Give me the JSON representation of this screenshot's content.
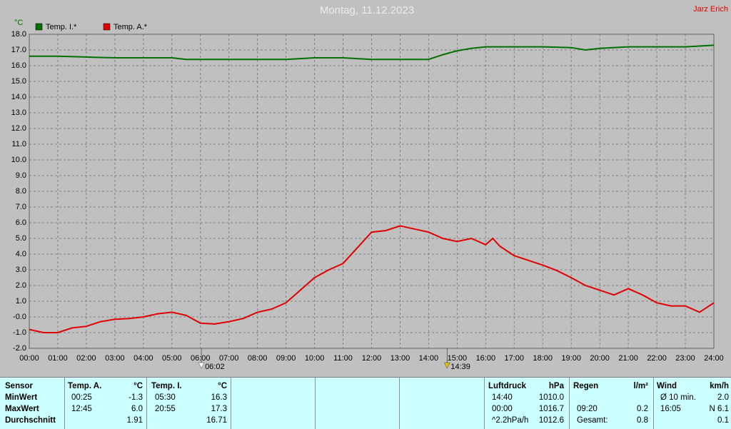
{
  "chart_data": {
    "type": "line",
    "title": "Montag, 11.12.2023",
    "author": "Jarz Erich",
    "y_label": "°C",
    "grid": true,
    "xlim": [
      0,
      24
    ],
    "ylim": [
      -2,
      18
    ],
    "xticks": [
      {
        "value": 0,
        "label": "00:00"
      },
      {
        "value": 1,
        "label": "01:00"
      },
      {
        "value": 2,
        "label": "02:00"
      },
      {
        "value": 3,
        "label": "03:00"
      },
      {
        "value": 4,
        "label": "04:00"
      },
      {
        "value": 5,
        "label": "05:00"
      },
      {
        "value": 6,
        "label": "06:00"
      },
      {
        "value": 7,
        "label": "07:00"
      },
      {
        "value": 8,
        "label": "08:00"
      },
      {
        "value": 9,
        "label": "09:00"
      },
      {
        "value": 10,
        "label": "10:00"
      },
      {
        "value": 11,
        "label": "11:00"
      },
      {
        "value": 12,
        "label": "12:00"
      },
      {
        "value": 13,
        "label": "13:00"
      },
      {
        "value": 14,
        "label": "14:00"
      },
      {
        "value": 15,
        "label": "15:00"
      },
      {
        "value": 16,
        "label": "16:00"
      },
      {
        "value": 17,
        "label": "17:00"
      },
      {
        "value": 18,
        "label": "18:00"
      },
      {
        "value": 19,
        "label": "19:00"
      },
      {
        "value": 20,
        "label": "20:00"
      },
      {
        "value": 21,
        "label": "21:00"
      },
      {
        "value": 22,
        "label": "22:00"
      },
      {
        "value": 23,
        "label": "23:00"
      },
      {
        "value": 24,
        "label": "24:00"
      }
    ],
    "yticks": [
      {
        "value": -2,
        "label": "-2.0"
      },
      {
        "value": -1,
        "label": "-1.0"
      },
      {
        "value": 0,
        "label": "-0.0"
      },
      {
        "value": 1,
        "label": "1.0"
      },
      {
        "value": 2,
        "label": "2.0"
      },
      {
        "value": 3,
        "label": "3.0"
      },
      {
        "value": 4,
        "label": "4.0"
      },
      {
        "value": 5,
        "label": "5.0"
      },
      {
        "value": 6,
        "label": "6.0"
      },
      {
        "value": 7,
        "label": "7.0"
      },
      {
        "value": 8,
        "label": "8.0"
      },
      {
        "value": 9,
        "label": "9.0"
      },
      {
        "value": 10,
        "label": "10.0"
      },
      {
        "value": 11,
        "label": "11.0"
      },
      {
        "value": 12,
        "label": "12.0"
      },
      {
        "value": 13,
        "label": "13.0"
      },
      {
        "value": 14,
        "label": "14.0"
      },
      {
        "value": 15,
        "label": "15.0"
      },
      {
        "value": 16,
        "label": "16.0"
      },
      {
        "value": 17,
        "label": "17.0"
      },
      {
        "value": 18,
        "label": "18.0"
      }
    ],
    "series": [
      {
        "name": "Temp. I.*",
        "color": "#007000",
        "x": [
          0,
          1,
          2,
          3,
          4,
          5,
          5.5,
          7,
          8,
          9,
          10,
          11,
          12,
          13,
          14,
          14.5,
          15,
          15.5,
          16,
          17,
          18,
          19,
          19.5,
          20,
          21,
          22,
          23,
          24
        ],
        "values": [
          16.6,
          16.6,
          16.55,
          16.5,
          16.5,
          16.5,
          16.4,
          16.4,
          16.4,
          16.4,
          16.5,
          16.5,
          16.4,
          16.4,
          16.4,
          16.7,
          16.95,
          17.1,
          17.2,
          17.2,
          17.2,
          17.15,
          17.0,
          17.1,
          17.2,
          17.2,
          17.2,
          17.3
        ]
      },
      {
        "name": "Temp. A.*",
        "color": "#e00000",
        "x": [
          0,
          0.5,
          1,
          1.5,
          2,
          2.5,
          3,
          3.5,
          4,
          4.5,
          5,
          5.5,
          6,
          6.5,
          7,
          7.5,
          8,
          8.5,
          9,
          9.5,
          10,
          10.5,
          11,
          11.5,
          12,
          12.5,
          13,
          13.5,
          14,
          14.5,
          15,
          15.5,
          16,
          16.25,
          16.5,
          17,
          17.5,
          18,
          18.5,
          19,
          19.5,
          20,
          20.5,
          21,
          21.5,
          22,
          22.5,
          23,
          23.5,
          24
        ],
        "values": [
          -0.8,
          -1.0,
          -1.0,
          -0.7,
          -0.6,
          -0.3,
          -0.15,
          -0.1,
          0.0,
          0.2,
          0.3,
          0.1,
          -0.4,
          -0.45,
          -0.3,
          -0.1,
          0.3,
          0.5,
          0.9,
          1.7,
          2.5,
          3.0,
          3.4,
          4.4,
          5.4,
          5.5,
          5.8,
          5.6,
          5.4,
          5.0,
          4.8,
          5.0,
          4.6,
          5.0,
          4.5,
          3.9,
          3.6,
          3.3,
          2.95,
          2.5,
          2.0,
          1.7,
          1.4,
          1.8,
          1.4,
          0.9,
          0.7,
          0.7,
          0.3,
          0.9
        ]
      }
    ],
    "annotations": [
      {
        "x": 6.033,
        "label": "06:02"
      },
      {
        "x": 14.65,
        "label": "14:39"
      }
    ]
  },
  "table": {
    "rows": [
      [
        "Sensor",
        "Temp. A.",
        "°C",
        "Temp. I.",
        "°C",
        "Luftdruck",
        "hPa",
        "Regen",
        "l/m²",
        "Wind",
        "km/h"
      ],
      [
        "MinWert",
        "00:25",
        "-1.3",
        "05:30",
        "16.3",
        "14:40",
        "1010.0",
        null,
        null,
        "Ø 10 min.",
        "2.0"
      ],
      [
        "MaxWert",
        "12:45",
        "6.0",
        "20:55",
        "17.3",
        "00:00",
        "1016.7",
        "09:20",
        "0.2",
        "16:05",
        "N 6.1"
      ],
      [
        "Durchschnitt",
        null,
        "1.91",
        null,
        "16.71",
        "^2.2hPa/h",
        "1012.6",
        "Gesamt:",
        "0.8",
        null,
        "0.1"
      ]
    ]
  }
}
